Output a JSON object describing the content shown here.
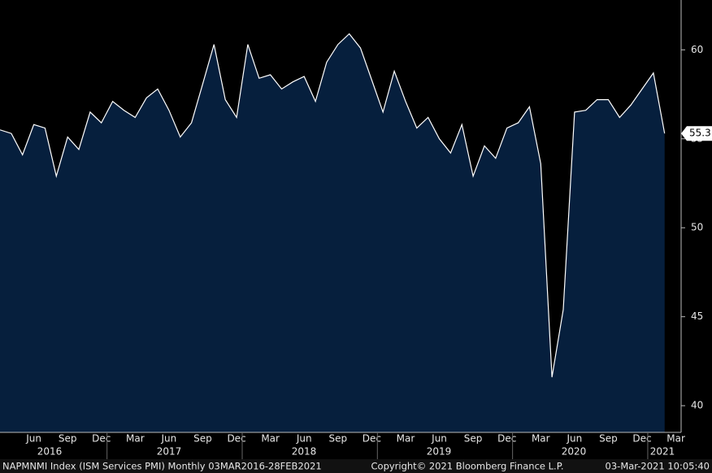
{
  "chart_data": {
    "type": "area",
    "categories": [
      null,
      null,
      null,
      "Jun",
      null,
      null,
      "Sep",
      null,
      null,
      "Dec",
      null,
      null,
      "Mar",
      null,
      null,
      "Jun",
      null,
      null,
      "Sep",
      null,
      null,
      "Dec",
      null,
      null,
      "Mar",
      null,
      null,
      "Jun",
      null,
      null,
      "Sep",
      null,
      null,
      "Dec",
      null,
      null,
      "Mar",
      null,
      null,
      "Jun",
      null,
      null,
      "Sep",
      null,
      null,
      "Dec",
      null,
      null,
      "Mar",
      null,
      null,
      "Jun",
      null,
      null,
      "Sep",
      null,
      null,
      "Dec",
      null,
      null,
      "Mar"
    ],
    "year_labels": [
      "2016",
      "2017",
      "2018",
      "2019",
      "2020",
      "2021"
    ],
    "values": [
      55.5,
      55.3,
      54.1,
      55.8,
      55.6,
      52.9,
      55.1,
      54.4,
      56.5,
      55.9,
      57.1,
      56.6,
      56.2,
      57.3,
      57.8,
      56.6,
      55.1,
      55.9,
      58.1,
      60.3,
      57.2,
      56.2,
      60.3,
      58.4,
      58.6,
      57.8,
      58.2,
      58.5,
      57.1,
      59.3,
      60.3,
      60.9,
      60.1,
      58.3,
      56.5,
      58.8,
      57.1,
      55.6,
      56.2,
      55.0,
      54.2,
      55.8,
      52.9,
      54.6,
      53.9,
      55.6,
      55.9,
      56.8,
      53.6,
      41.6,
      45.4,
      56.5,
      56.6,
      57.2,
      57.2,
      56.2,
      56.9,
      57.8,
      58.7,
      55.3,
      null
    ],
    "color": "#061f3d",
    "line_color": "#ffffff",
    "ylim": [
      38.5,
      62.8
    ],
    "yticks": [
      40,
      45,
      50,
      55,
      60
    ],
    "last_value_index": 59,
    "footer": {
      "left": "NAPMNMI Index (ISM Services PMI)  Monthly 03MAR2016-28FEB2021",
      "center": "Copyright© 2021 Bloomberg Finance L.P.",
      "right": "03-Mar-2021 10:05:40"
    }
  }
}
